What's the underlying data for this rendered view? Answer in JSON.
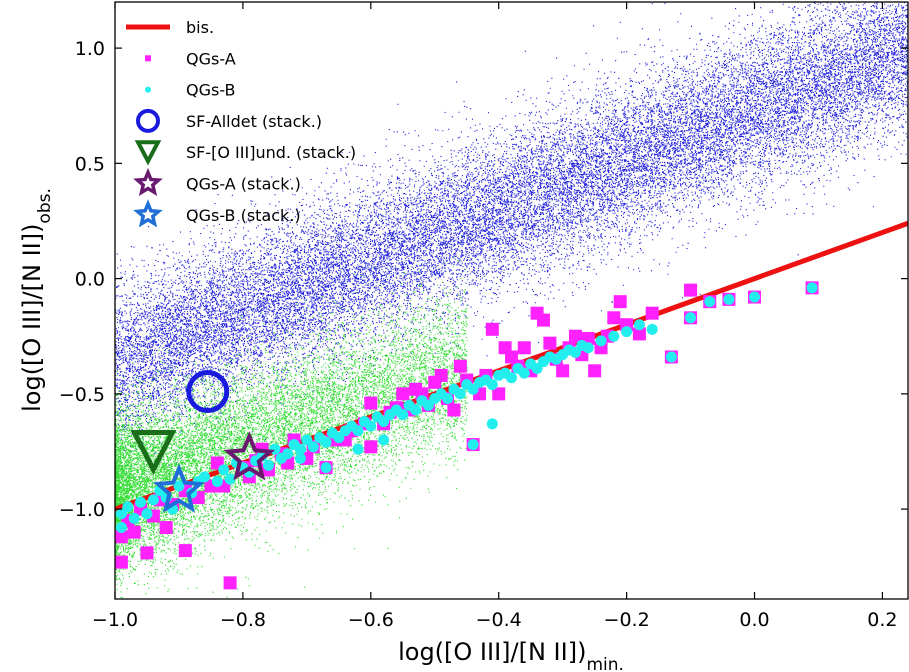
{
  "chart_data": {
    "type": "scatter",
    "xlabel": {
      "main": "log([O III]/[N II])",
      "sub": "min."
    },
    "ylabel": {
      "main": "log([O III]/[N II])",
      "sub": "obs."
    },
    "xlim": [
      -1.0,
      0.24
    ],
    "ylim": [
      -1.39,
      1.2
    ],
    "x_ticks": [
      -1.0,
      -0.8,
      -0.6,
      -0.4,
      -0.2,
      0.0,
      0.2
    ],
    "x_tick_labels": [
      "−1.0",
      "−0.8",
      "−0.6",
      "−0.4",
      "−0.2",
      "0.0",
      "0.2"
    ],
    "y_ticks": [
      -1.0,
      -0.5,
      0.0,
      0.5,
      1.0
    ],
    "y_tick_labels": [
      "−1.0",
      "−0.5",
      "0.0",
      "0.5",
      "1.0"
    ],
    "grid": false,
    "legend_position": "top-left",
    "legend": [
      {
        "label": "bis.",
        "marker": "line",
        "color": "#ee1111"
      },
      {
        "label": "QGs-A",
        "marker": "square",
        "color": "#ff22ff"
      },
      {
        "label": "QGs-B",
        "marker": "dot",
        "color": "#22eeee"
      },
      {
        "label": "SF-Alldet (stack.)",
        "marker": "circle",
        "color": "#1a1adf"
      },
      {
        "label": "SF-[O III]und. (stack.)",
        "marker": "triangle-down",
        "color": "#1a6e1a"
      },
      {
        "label": "QGs-A (stack.)",
        "marker": "star",
        "color": "#6a1a6e"
      },
      {
        "label": "QGs-B (stack.)",
        "marker": "star",
        "color": "#1f6fd6"
      }
    ],
    "series": [
      {
        "name": "bis.",
        "kind": "line",
        "color": "#ee1111",
        "points": [
          [
            -1.0,
            -1.0
          ],
          [
            0.24,
            0.24
          ]
        ]
      },
      {
        "name": "SF-Alldet",
        "kind": "density",
        "color": "#2222dd",
        "x_range": [
          -1.0,
          0.24
        ],
        "trend": {
          "slope": 1.1,
          "intercept": 0.73
        },
        "scatter_sd": 0.17,
        "approx_points": 26000
      },
      {
        "name": "SF-[O III]und.",
        "kind": "density",
        "color": "#33dd33",
        "x_range": [
          -1.0,
          -0.45
        ],
        "trend": {
          "slope": 1.0,
          "intercept": 0.07
        },
        "scatter_sd": 0.17,
        "approx_points": 15000
      },
      {
        "name": "QGs-A",
        "kind": "square",
        "color": "#ff22ff",
        "points": [
          [
            -0.99,
            -1.23
          ],
          [
            -0.99,
            -1.12
          ],
          [
            -0.98,
            -1.05
          ],
          [
            -0.97,
            -1.1
          ],
          [
            -0.96,
            -1.0
          ],
          [
            -0.95,
            -1.19
          ],
          [
            -0.94,
            -1.03
          ],
          [
            -0.93,
            -0.96
          ],
          [
            -0.92,
            -1.08
          ],
          [
            -0.91,
            -0.98
          ],
          [
            -0.89,
            -1.18
          ],
          [
            -0.89,
            -0.92
          ],
          [
            -0.87,
            -0.95
          ],
          [
            -0.85,
            -0.9
          ],
          [
            -0.84,
            -0.8
          ],
          [
            -0.83,
            -0.9
          ],
          [
            -0.82,
            -1.32
          ],
          [
            -0.8,
            -0.82
          ],
          [
            -0.79,
            -0.86
          ],
          [
            -0.78,
            -0.79
          ],
          [
            -0.77,
            -0.74
          ],
          [
            -0.76,
            -0.83
          ],
          [
            -0.74,
            -0.76
          ],
          [
            -0.73,
            -0.8
          ],
          [
            -0.72,
            -0.7
          ],
          [
            -0.7,
            -0.78
          ],
          [
            -0.69,
            -0.73
          ],
          [
            -0.67,
            -0.82
          ],
          [
            -0.66,
            -0.7
          ],
          [
            -0.64,
            -0.7
          ],
          [
            -0.63,
            -0.66
          ],
          [
            -0.61,
            -0.63
          ],
          [
            -0.6,
            -0.73
          ],
          [
            -0.6,
            -0.54
          ],
          [
            -0.58,
            -0.63
          ],
          [
            -0.57,
            -0.58
          ],
          [
            -0.56,
            -0.56
          ],
          [
            -0.55,
            -0.5
          ],
          [
            -0.54,
            -0.57
          ],
          [
            -0.53,
            -0.48
          ],
          [
            -0.52,
            -0.5
          ],
          [
            -0.51,
            -0.55
          ],
          [
            -0.5,
            -0.45
          ],
          [
            -0.49,
            -0.42
          ],
          [
            -0.48,
            -0.52
          ],
          [
            -0.47,
            -0.57
          ],
          [
            -0.46,
            -0.38
          ],
          [
            -0.45,
            -0.44
          ],
          [
            -0.44,
            -0.72
          ],
          [
            -0.43,
            -0.5
          ],
          [
            -0.42,
            -0.42
          ],
          [
            -0.41,
            -0.22
          ],
          [
            -0.4,
            -0.5
          ],
          [
            -0.39,
            -0.3
          ],
          [
            -0.38,
            -0.34
          ],
          [
            -0.37,
            -0.38
          ],
          [
            -0.36,
            -0.3
          ],
          [
            -0.35,
            -0.4
          ],
          [
            -0.34,
            -0.15
          ],
          [
            -0.33,
            -0.18
          ],
          [
            -0.32,
            -0.28
          ],
          [
            -0.31,
            -0.35
          ],
          [
            -0.3,
            -0.4
          ],
          [
            -0.29,
            -0.3
          ],
          [
            -0.28,
            -0.25
          ],
          [
            -0.27,
            -0.33
          ],
          [
            -0.26,
            -0.26
          ],
          [
            -0.25,
            -0.4
          ],
          [
            -0.24,
            -0.3
          ],
          [
            -0.23,
            -0.25
          ],
          [
            -0.22,
            -0.17
          ],
          [
            -0.21,
            -0.1
          ],
          [
            -0.2,
            -0.2
          ],
          [
            -0.18,
            -0.24
          ],
          [
            -0.16,
            -0.15
          ],
          [
            -0.13,
            -0.34
          ],
          [
            -0.1,
            -0.17
          ],
          [
            -0.1,
            -0.05
          ],
          [
            -0.07,
            -0.1
          ],
          [
            -0.04,
            -0.09
          ],
          [
            0.0,
            -0.08
          ],
          [
            0.09,
            -0.04
          ]
        ]
      },
      {
        "name": "QGs-B",
        "kind": "dot",
        "color": "#22eeee",
        "points": [
          [
            -0.99,
            -1.08
          ],
          [
            -0.99,
            -1.02
          ],
          [
            -0.98,
            -0.99
          ],
          [
            -0.97,
            -1.04
          ],
          [
            -0.96,
            -0.97
          ],
          [
            -0.95,
            -1.02
          ],
          [
            -0.94,
            -0.96
          ],
          [
            -0.93,
            -0.92
          ],
          [
            -0.92,
            -0.95
          ],
          [
            -0.91,
            -1.0
          ],
          [
            -0.9,
            -0.9
          ],
          [
            -0.88,
            -0.93
          ],
          [
            -0.87,
            -0.88
          ],
          [
            -0.86,
            -0.86
          ],
          [
            -0.84,
            -0.88
          ],
          [
            -0.83,
            -0.83
          ],
          [
            -0.82,
            -0.87
          ],
          [
            -0.81,
            -0.8
          ],
          [
            -0.8,
            -0.82
          ],
          [
            -0.79,
            -0.84
          ],
          [
            -0.78,
            -0.79
          ],
          [
            -0.77,
            -0.77
          ],
          [
            -0.76,
            -0.81
          ],
          [
            -0.75,
            -0.74
          ],
          [
            -0.74,
            -0.78
          ],
          [
            -0.73,
            -0.76
          ],
          [
            -0.72,
            -0.72
          ],
          [
            -0.71,
            -0.74
          ],
          [
            -0.7,
            -0.7
          ],
          [
            -0.69,
            -0.73
          ],
          [
            -0.68,
            -0.69
          ],
          [
            -0.67,
            -0.71
          ],
          [
            -0.66,
            -0.67
          ],
          [
            -0.65,
            -0.69
          ],
          [
            -0.64,
            -0.66
          ],
          [
            -0.63,
            -0.64
          ],
          [
            -0.62,
            -0.66
          ],
          [
            -0.61,
            -0.62
          ],
          [
            -0.6,
            -0.64
          ],
          [
            -0.59,
            -0.6
          ],
          [
            -0.58,
            -0.62
          ],
          [
            -0.57,
            -0.59
          ],
          [
            -0.56,
            -0.57
          ],
          [
            -0.55,
            -0.59
          ],
          [
            -0.54,
            -0.55
          ],
          [
            -0.53,
            -0.57
          ],
          [
            -0.52,
            -0.53
          ],
          [
            -0.51,
            -0.55
          ],
          [
            -0.5,
            -0.52
          ],
          [
            -0.49,
            -0.5
          ],
          [
            -0.48,
            -0.52
          ],
          [
            -0.47,
            -0.48
          ],
          [
            -0.46,
            -0.5
          ],
          [
            -0.45,
            -0.46
          ],
          [
            -0.44,
            -0.48
          ],
          [
            -0.43,
            -0.45
          ],
          [
            -0.42,
            -0.44
          ],
          [
            -0.41,
            -0.46
          ],
          [
            -0.4,
            -0.42
          ],
          [
            -0.39,
            -0.41
          ],
          [
            -0.38,
            -0.43
          ],
          [
            -0.37,
            -0.39
          ],
          [
            -0.36,
            -0.41
          ],
          [
            -0.35,
            -0.37
          ],
          [
            -0.34,
            -0.39
          ],
          [
            -0.33,
            -0.36
          ],
          [
            -0.32,
            -0.34
          ],
          [
            -0.31,
            -0.35
          ],
          [
            -0.3,
            -0.33
          ],
          [
            -0.29,
            -0.31
          ],
          [
            -0.28,
            -0.32
          ],
          [
            -0.27,
            -0.29
          ],
          [
            -0.26,
            -0.3
          ],
          [
            -0.24,
            -0.27
          ],
          [
            -0.22,
            -0.25
          ],
          [
            -0.2,
            -0.23
          ],
          [
            -0.18,
            -0.2
          ],
          [
            -0.16,
            -0.22
          ],
          [
            -0.13,
            -0.34
          ],
          [
            -0.1,
            -0.17
          ],
          [
            -0.07,
            -0.1
          ],
          [
            -0.04,
            -0.09
          ],
          [
            0.0,
            -0.08
          ],
          [
            0.09,
            -0.04
          ],
          [
            -0.41,
            -0.63
          ],
          [
            -0.44,
            -0.72
          ],
          [
            -0.58,
            -0.7
          ],
          [
            -0.62,
            -0.74
          ],
          [
            -0.67,
            -0.82
          ],
          [
            -0.71,
            -0.78
          ]
        ]
      },
      {
        "name": "SF-Alldet (stack.)",
        "kind": "circle",
        "color": "#1a1adf",
        "points": [
          [
            -0.855,
            -0.49
          ]
        ]
      },
      {
        "name": "SF-[O III]und. (stack.)",
        "kind": "triangle-down",
        "color": "#1a6e1a",
        "points": [
          [
            -0.94,
            -0.75
          ]
        ]
      },
      {
        "name": "QGs-A (stack.)",
        "kind": "star",
        "color": "#6a1a6e",
        "points": [
          [
            -0.79,
            -0.78
          ]
        ]
      },
      {
        "name": "QGs-B (stack.)",
        "kind": "star",
        "color": "#1f6fd6",
        "points": [
          [
            -0.9,
            -0.92
          ]
        ]
      }
    ]
  }
}
